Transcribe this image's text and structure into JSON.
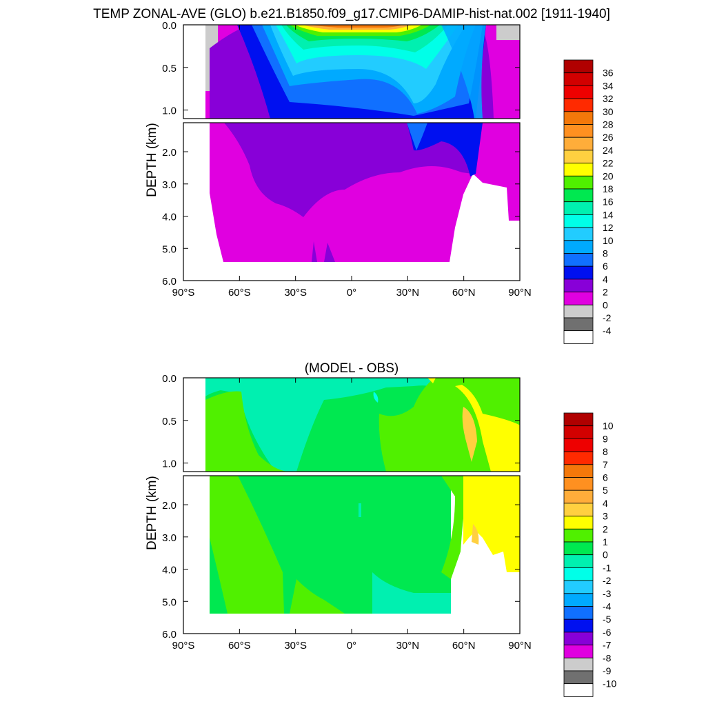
{
  "title": "TEMP ZONAL-AVE (GLO) b.e21.B1850.f09_g17.CMIP6-DAMIP-hist-nat.002 [1911-1940]",
  "chart_data": [
    {
      "type": "heatmap",
      "title": "",
      "ylabel": "DEPTH (km)",
      "x_ticks": [
        "90°S",
        "60°S",
        "30°S",
        "0°",
        "30°N",
        "60°N",
        "90°N"
      ],
      "x_values": [
        -90,
        -60,
        -30,
        0,
        30,
        60,
        90
      ],
      "y_ticks_upper": [
        "0.0",
        "0.5",
        "1.0"
      ],
      "y_ticks_lower": [
        "2.0",
        "3.0",
        "4.0",
        "5.0",
        "6.0"
      ],
      "ylim": [
        0,
        6
      ],
      "colorbar": {
        "labels": [
          "36",
          "34",
          "32",
          "30",
          "28",
          "26",
          "24",
          "22",
          "20",
          "18",
          "16",
          "14",
          "12",
          "10",
          "8",
          "6",
          "4",
          "2",
          "0",
          "-2",
          "-4"
        ],
        "colors": [
          "#b00000",
          "#d20000",
          "#ee0000",
          "#ff2a00",
          "#f4780a",
          "#ff9020",
          "#ffad3a",
          "#ffd040",
          "#ffff00",
          "#50f000",
          "#00e850",
          "#00f0b0",
          "#00ffe8",
          "#22ccff",
          "#00aaff",
          "#1070ff",
          "#0010f0",
          "#8800d8",
          "#e000e0",
          "#cccccc",
          "#707070",
          "#ffffff"
        ]
      }
    },
    {
      "type": "heatmap",
      "title": "(MODEL - OBS)",
      "ylabel": "DEPTH (km)",
      "x_ticks": [
        "90°S",
        "60°S",
        "30°S",
        "0°",
        "30°N",
        "60°N",
        "90°N"
      ],
      "x_values": [
        -90,
        -60,
        -30,
        0,
        30,
        60,
        90
      ],
      "y_ticks_upper": [
        "0.0",
        "0.5",
        "1.0"
      ],
      "y_ticks_lower": [
        "2.0",
        "3.0",
        "4.0",
        "5.0",
        "6.0"
      ],
      "ylim": [
        0,
        6
      ],
      "colorbar": {
        "labels": [
          "10",
          "9",
          "8",
          "7",
          "6",
          "5",
          "4",
          "3",
          "2",
          "1",
          "0",
          "-1",
          "-2",
          "-3",
          "-4",
          "-5",
          "-6",
          "-7",
          "-8",
          "-9",
          "-10"
        ],
        "colors": [
          "#b00000",
          "#d20000",
          "#ee0000",
          "#ff2a00",
          "#f4780a",
          "#ff9020",
          "#ffad3a",
          "#ffd040",
          "#ffff00",
          "#50f000",
          "#00e850",
          "#00f0b0",
          "#00ffe8",
          "#22ccff",
          "#00aaff",
          "#1070ff",
          "#0010f0",
          "#8800d8",
          "#e000e0",
          "#cccccc",
          "#707070",
          "#ffffff"
        ]
      }
    }
  ]
}
